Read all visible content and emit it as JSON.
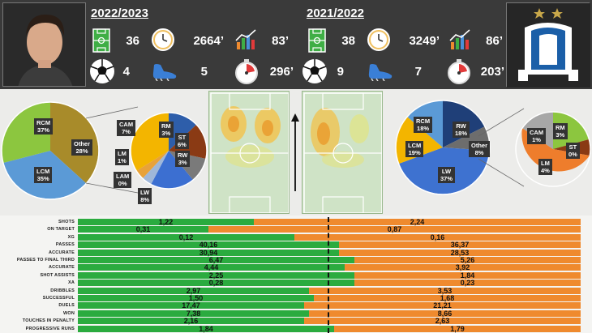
{
  "header": {
    "season_current": "2022/2023",
    "season_previous": "2021/2022",
    "current": {
      "matches": "36",
      "minutes": "2664’",
      "rating": "83’",
      "goals": "4",
      "assists": "5",
      "goal_every": "296’"
    },
    "previous": {
      "matches": "38",
      "minutes": "3249’",
      "rating": "86’",
      "goals": "9",
      "assists": "7",
      "goal_every": "203’"
    }
  },
  "positions_current": {
    "main": [
      {
        "label": "RCM",
        "pct": "37%"
      },
      {
        "label": "LCM",
        "pct": "35%"
      },
      {
        "label": "Other",
        "pct": "28%"
      }
    ],
    "other": [
      {
        "label": "CAM",
        "pct": "7%"
      },
      {
        "label": "RM",
        "pct": "3%"
      },
      {
        "label": "ST",
        "pct": "6%"
      },
      {
        "label": "RW",
        "pct": "3%"
      },
      {
        "label": "LW",
        "pct": "8%"
      },
      {
        "label": "LAM",
        "pct": "0%"
      },
      {
        "label": "LM",
        "pct": "1%"
      }
    ]
  },
  "positions_previous": {
    "main": [
      {
        "label": "RCM",
        "pct": "18%"
      },
      {
        "label": "RW",
        "pct": "18%"
      },
      {
        "label": "LCM",
        "pct": "19%"
      },
      {
        "label": "Other",
        "pct": "8%"
      },
      {
        "label": "LW",
        "pct": "37%"
      }
    ],
    "other": [
      {
        "label": "CAM",
        "pct": "1%"
      },
      {
        "label": "RM",
        "pct": "3%"
      },
      {
        "label": "ST",
        "pct": "0%"
      },
      {
        "label": "LM",
        "pct": "4%"
      }
    ]
  },
  "stats": [
    {
      "label": "SHOTS",
      "v1": "1,22",
      "v2": "2,24",
      "g": 0.35
    },
    {
      "label": "ON TARGET",
      "v1": "0,31",
      "v2": "0,87",
      "g": 0.26
    },
    {
      "label": "XG",
      "v1": "0,12",
      "v2": "0,16",
      "g": 0.43
    },
    {
      "label": "PASSES",
      "v1": "40,16",
      "v2": "36,37",
      "g": 0.52
    },
    {
      "label": "ACCURATE",
      "v1": "30,94",
      "v2": "28,53",
      "g": 0.52
    },
    {
      "label": "PASSES TO FINAL THIRD",
      "v1": "6,47",
      "v2": "5,26",
      "g": 0.55
    },
    {
      "label": "ACCURATE",
      "v1": "4,44",
      "v2": "3,92",
      "g": 0.53
    },
    {
      "label": "SHOT ASSISTS",
      "v1": "2,25",
      "v2": "1,84",
      "g": 0.55
    },
    {
      "label": "XA",
      "v1": "0,28",
      "v2": "0,23",
      "g": 0.55
    },
    {
      "label": "DRIBBLES",
      "v1": "2,97",
      "v2": "3,53",
      "g": 0.46
    },
    {
      "label": "SUCCESSFUL",
      "v1": "1,50",
      "v2": "1,68",
      "g": 0.47
    },
    {
      "label": "DUELS",
      "v1": "17,47",
      "v2": "21,21",
      "g": 0.45
    },
    {
      "label": "WON",
      "v1": "7,38",
      "v2": "8,66",
      "g": 0.46
    },
    {
      "label": "TOUCHES IN PENALTY",
      "v1": "2,16",
      "v2": "2,63",
      "g": 0.45
    },
    {
      "label": "PROGRESSIVE RUNS",
      "v1": "1,84",
      "v2": "1,79",
      "g": 0.51
    }
  ],
  "colors": {
    "green": "#2bab3f",
    "orange": "#ef8a2e",
    "header_bg": "#3a3a3a"
  },
  "icons": [
    "pitch-icon",
    "clock-icon",
    "chart-icon",
    "ball-icon",
    "boot-icon",
    "stopwatch-icon",
    "dynamo-logo"
  ]
}
